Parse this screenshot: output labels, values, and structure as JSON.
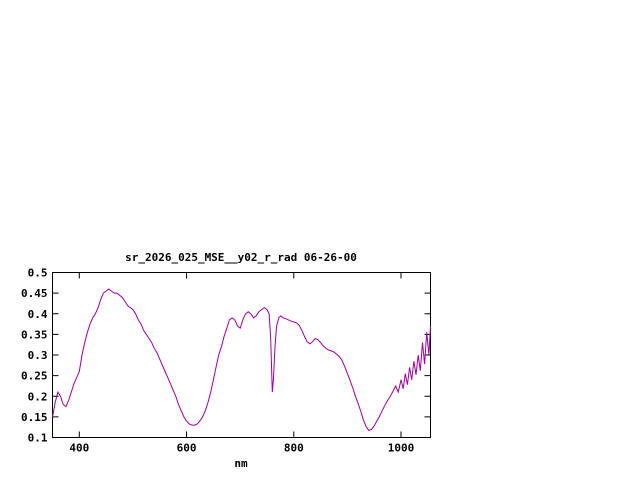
{
  "page": {
    "background": "#ffffff",
    "foreground": "#000000"
  },
  "chart_data": {
    "type": "line",
    "title": "sr_2026_025_MSE__y02_r_rad 06-26-00",
    "xlabel": "nm",
    "ylabel": "",
    "grid": false,
    "legend": "none",
    "xlim": [
      350,
      1055
    ],
    "ylim": [
      0.1,
      0.5
    ],
    "x_ticks": [
      400,
      600,
      800,
      1000
    ],
    "x_tick_labels": [
      "400",
      "600",
      "800",
      "1000"
    ],
    "y_ticks": [
      0.1,
      0.15,
      0.2,
      0.25,
      0.3,
      0.35,
      0.4,
      0.45,
      0.5
    ],
    "y_tick_labels": [
      "0.1",
      "0.15",
      "0.2",
      "0.25",
      "0.3",
      "0.35",
      "0.4",
      "0.45",
      "0.5"
    ],
    "line_color": "#a000a0",
    "border_color": "#000000",
    "series": [
      {
        "name": "sr_2026_025_MSE__y02_r_rad",
        "x": [
          350,
          355,
          360,
          365,
          370,
          375,
          380,
          385,
          390,
          395,
          400,
          405,
          410,
          415,
          420,
          425,
          430,
          435,
          440,
          445,
          450,
          455,
          460,
          465,
          470,
          475,
          480,
          485,
          490,
          495,
          500,
          505,
          510,
          515,
          520,
          525,
          530,
          535,
          540,
          545,
          550,
          555,
          560,
          565,
          570,
          575,
          580,
          585,
          590,
          595,
          600,
          605,
          610,
          615,
          620,
          625,
          630,
          635,
          640,
          645,
          650,
          655,
          660,
          665,
          670,
          675,
          680,
          685,
          690,
          695,
          700,
          705,
          710,
          715,
          720,
          725,
          730,
          735,
          740,
          745,
          750,
          754,
          757,
          760,
          762,
          765,
          768,
          772,
          776,
          780,
          785,
          790,
          795,
          800,
          805,
          810,
          815,
          820,
          825,
          830,
          835,
          840,
          845,
          850,
          855,
          860,
          865,
          870,
          875,
          880,
          885,
          890,
          895,
          900,
          905,
          910,
          915,
          920,
          925,
          930,
          935,
          940,
          945,
          950,
          955,
          960,
          965,
          970,
          975,
          980,
          985,
          990,
          995,
          1000,
          1004,
          1008,
          1012,
          1016,
          1020,
          1024,
          1028,
          1032,
          1036,
          1040,
          1044,
          1048,
          1052,
          1055
        ],
        "y": [
          0.15,
          0.185,
          0.21,
          0.2,
          0.18,
          0.175,
          0.19,
          0.21,
          0.23,
          0.245,
          0.26,
          0.3,
          0.33,
          0.355,
          0.375,
          0.39,
          0.4,
          0.415,
          0.435,
          0.45,
          0.455,
          0.46,
          0.455,
          0.45,
          0.45,
          0.445,
          0.44,
          0.43,
          0.42,
          0.415,
          0.41,
          0.4,
          0.385,
          0.375,
          0.36,
          0.35,
          0.34,
          0.33,
          0.315,
          0.305,
          0.29,
          0.275,
          0.26,
          0.245,
          0.23,
          0.215,
          0.2,
          0.18,
          0.165,
          0.15,
          0.14,
          0.133,
          0.13,
          0.13,
          0.133,
          0.14,
          0.15,
          0.165,
          0.185,
          0.21,
          0.24,
          0.27,
          0.3,
          0.32,
          0.345,
          0.365,
          0.385,
          0.39,
          0.385,
          0.37,
          0.365,
          0.385,
          0.4,
          0.405,
          0.4,
          0.39,
          0.395,
          0.405,
          0.41,
          0.415,
          0.41,
          0.4,
          0.34,
          0.21,
          0.24,
          0.32,
          0.37,
          0.39,
          0.395,
          0.39,
          0.388,
          0.385,
          0.382,
          0.38,
          0.378,
          0.372,
          0.36,
          0.345,
          0.332,
          0.327,
          0.332,
          0.34,
          0.337,
          0.33,
          0.322,
          0.316,
          0.312,
          0.31,
          0.307,
          0.302,
          0.296,
          0.287,
          0.272,
          0.255,
          0.238,
          0.22,
          0.2,
          0.183,
          0.163,
          0.142,
          0.126,
          0.117,
          0.12,
          0.128,
          0.14,
          0.152,
          0.165,
          0.178,
          0.19,
          0.2,
          0.212,
          0.225,
          0.21,
          0.24,
          0.218,
          0.255,
          0.228,
          0.27,
          0.24,
          0.285,
          0.252,
          0.3,
          0.262,
          0.33,
          0.278,
          0.355,
          0.3,
          0.37
        ]
      }
    ]
  }
}
